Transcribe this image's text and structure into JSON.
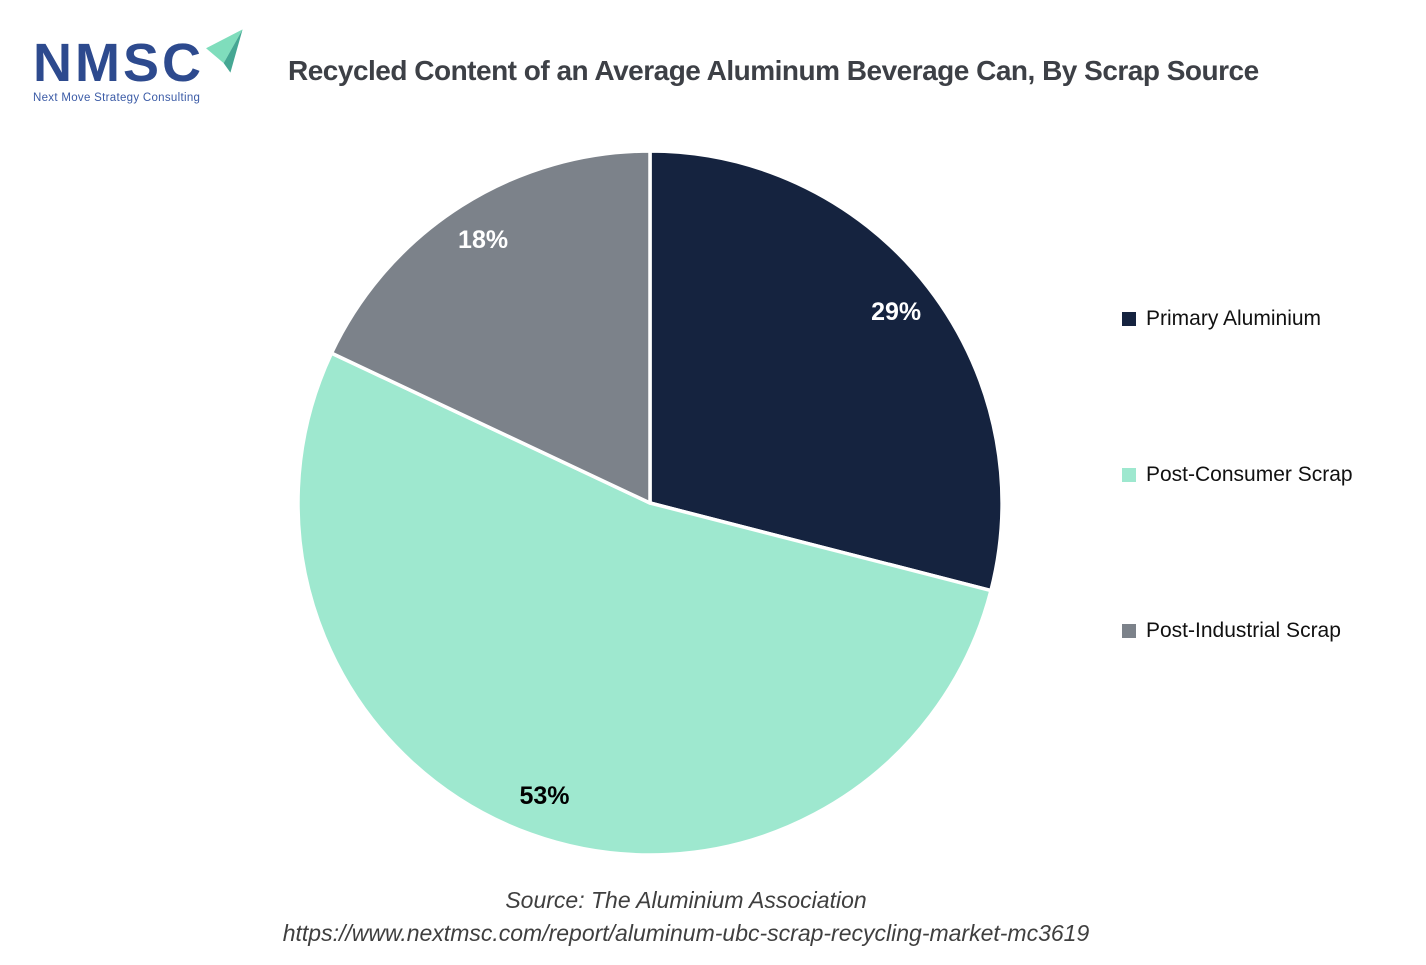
{
  "logo": {
    "brand": "NMSC",
    "tagline": "Next Move Strategy Consulting",
    "brand_color": "#2D4A8E",
    "tagline_color": "#3B5BA6",
    "arrow_light_color": "#7FDDBC",
    "arrow_dark_color": "#45A793"
  },
  "title": {
    "text": "Recycled Content of an Average Aluminum Beverage Can, By Scrap Source",
    "color": "#3D4046"
  },
  "chart_data": {
    "type": "pie",
    "title": "Recycled Content of an Average Aluminum Beverage Can, By Scrap Source",
    "direction": "clockwise",
    "start_angle_deg_from_top": 0,
    "slice_border_color": "#FFFFFF",
    "legend_position": "right",
    "slices": [
      {
        "label": "Primary Aluminium",
        "value_pct": 29,
        "data_label": "29%",
        "color": "#15233F",
        "label_color": "#FFFFFF"
      },
      {
        "label": "Post-Consumer Scrap",
        "value_pct": 53,
        "data_label": "53%",
        "color": "#9EE8CF",
        "label_color": "#000000"
      },
      {
        "label": "Post-Industrial Scrap",
        "value_pct": 18,
        "data_label": "18%",
        "color": "#7C828A",
        "label_color": "#FFFFFF"
      }
    ]
  },
  "source": {
    "line1": "Source: The Aluminium Association",
    "line2": "https://www.nextmsc.com/report/aluminum-ubc-scrap-recycling-market-mc3619",
    "color": "#3F3F3F"
  }
}
